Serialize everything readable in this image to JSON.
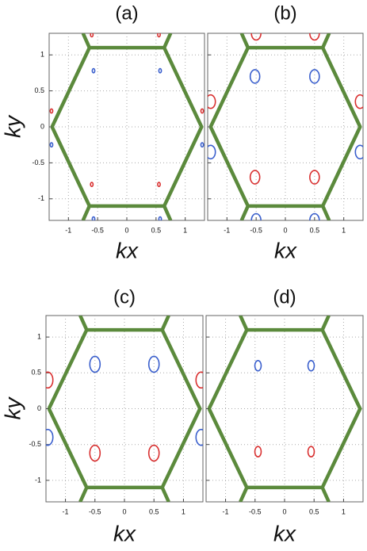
{
  "chart_data": [
    {
      "type": "scatter",
      "title": "(a)",
      "xlabel": "kx",
      "ylabel": "ky",
      "xlim": [
        -1.33,
        1.33
      ],
      "ylim": [
        -1.3,
        1.3
      ],
      "xticks": [
        -1,
        -0.5,
        0,
        0.5,
        1
      ],
      "yticks": [
        -1,
        -0.5,
        0,
        0.5,
        1
      ],
      "yticklabels": true,
      "grid": true,
      "zone": {
        "color": "#5b8a3c",
        "x": [
          -1.28,
          -0.64,
          0.64,
          1.28,
          0.64,
          -0.64,
          -1.28,
          null,
          -0.64,
          -0.75,
          null,
          0.64,
          0.75,
          null,
          -0.64,
          -0.75,
          null,
          0.64,
          0.75
        ],
        "y": [
          0,
          1.1,
          1.1,
          0,
          -1.1,
          -1.1,
          0,
          null,
          1.1,
          1.3,
          null,
          1.1,
          1.3,
          null,
          -1.1,
          -1.3,
          null,
          -1.1,
          -1.3
        ]
      },
      "series": [
        {
          "color": "#d93030",
          "x": [
            -0.6,
            0.55,
            -1.29,
            1.29,
            -0.6,
            0.55
          ],
          "y": [
            1.28,
            1.28,
            0.22,
            0.22,
            -0.8,
            -0.8
          ]
        },
        {
          "color": "#3a5fcd",
          "x": [
            -0.57,
            0.57,
            -1.29,
            1.29,
            -0.57,
            0.57
          ],
          "y": [
            0.78,
            0.78,
            -0.25,
            -0.25,
            -1.28,
            -1.28
          ]
        }
      ]
    },
    {
      "type": "scatter",
      "title": "(b)",
      "xlabel": "kx",
      "xlim": [
        -1.33,
        1.33
      ],
      "ylim": [
        -1.3,
        1.3
      ],
      "xticks": [
        -1,
        -0.5,
        0,
        0.5,
        1
      ],
      "yticks": [
        -1,
        -0.5,
        0,
        0.5,
        1
      ],
      "yticklabels": false,
      "grid": true,
      "zone": {
        "color": "#5b8a3c",
        "x": [
          -1.28,
          -0.64,
          0.64,
          1.28,
          0.64,
          -0.64,
          -1.28,
          null,
          -0.64,
          -0.75,
          null,
          0.64,
          0.75,
          null,
          -0.64,
          -0.75,
          null,
          0.64,
          0.75
        ],
        "y": [
          0,
          1.1,
          1.1,
          0,
          -1.1,
          -1.1,
          0,
          null,
          1.1,
          1.3,
          null,
          1.1,
          1.3,
          null,
          -1.1,
          -1.3,
          null,
          -1.1,
          -1.3
        ]
      },
      "series": [
        {
          "color": "#d93030",
          "x": [
            -1.28,
            1.28,
            -0.52,
            0.5,
            -0.5,
            0.5
          ],
          "y": [
            0.35,
            0.35,
            -0.7,
            -0.7,
            1.3,
            1.3
          ]
        },
        {
          "color": "#3a5fcd",
          "x": [
            -0.52,
            0.5,
            -1.28,
            1.28,
            -0.5,
            0.5
          ],
          "y": [
            0.7,
            0.7,
            -0.35,
            -0.35,
            -1.3,
            -1.3
          ]
        }
      ]
    },
    {
      "type": "scatter",
      "title": "(c)",
      "xlabel": "kx",
      "ylabel": "ky",
      "xlim": [
        -1.33,
        1.33
      ],
      "ylim": [
        -1.3,
        1.3
      ],
      "xticks": [
        -1,
        -0.5,
        0,
        0.5,
        1
      ],
      "yticks": [
        -1,
        -0.5,
        0,
        0.5,
        1
      ],
      "yticklabels": true,
      "grid": true,
      "zone": {
        "color": "#5b8a3c",
        "x": [
          -1.28,
          -0.64,
          0.64,
          1.28,
          0.64,
          -0.64,
          -1.28,
          null,
          -0.64,
          -0.75,
          null,
          0.64,
          0.75,
          null,
          -0.64,
          -0.75,
          null,
          0.64,
          0.75
        ],
        "y": [
          0,
          1.1,
          1.1,
          0,
          -1.1,
          -1.1,
          0,
          null,
          1.1,
          1.3,
          null,
          1.1,
          1.3,
          null,
          -1.1,
          -1.3,
          null,
          -1.1,
          -1.3
        ]
      },
      "series": [
        {
          "color": "#d93030",
          "x": [
            -1.3,
            1.3,
            -0.5,
            0.5
          ],
          "y": [
            0.4,
            0.4,
            -0.62,
            -0.62
          ]
        },
        {
          "color": "#3a5fcd",
          "x": [
            -0.5,
            0.5,
            -1.3,
            1.3
          ],
          "y": [
            0.62,
            0.62,
            -0.4,
            -0.4
          ]
        }
      ]
    },
    {
      "type": "scatter",
      "title": "(d)",
      "xlabel": "kx",
      "xlim": [
        -1.33,
        1.33
      ],
      "ylim": [
        -1.3,
        1.3
      ],
      "xticks": [
        -1,
        -0.5,
        0,
        0.5,
        1
      ],
      "yticks": [
        -1,
        -0.5,
        0,
        0.5,
        1
      ],
      "yticklabels": false,
      "grid": true,
      "zone": {
        "color": "#5b8a3c",
        "x": [
          -1.28,
          -0.64,
          0.64,
          1.28,
          0.64,
          -0.64,
          -1.28,
          null,
          -0.64,
          -0.75,
          null,
          0.64,
          0.75,
          null,
          -0.64,
          -0.75,
          null,
          0.64,
          0.75
        ],
        "y": [
          0,
          1.1,
          1.1,
          0,
          -1.1,
          -1.1,
          0,
          null,
          1.1,
          1.3,
          null,
          1.1,
          1.3,
          null,
          -1.1,
          -1.3,
          null,
          -1.1,
          -1.3
        ]
      },
      "series": [
        {
          "color": "#d93030",
          "x": [
            -0.45,
            0.45
          ],
          "y": [
            -0.6,
            -0.6
          ]
        },
        {
          "color": "#3a5fcd",
          "x": [
            -0.45,
            0.45
          ],
          "y": [
            0.6,
            0.6
          ]
        }
      ]
    }
  ]
}
